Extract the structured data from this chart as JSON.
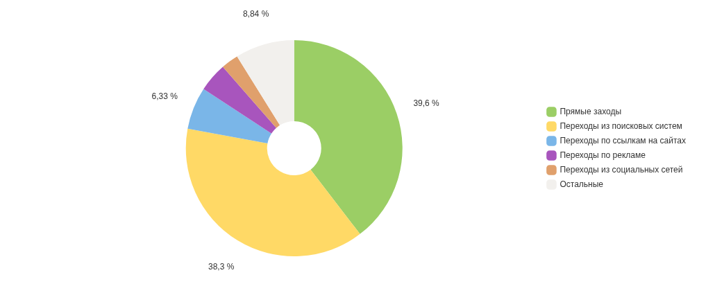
{
  "chart_data": {
    "type": "donut",
    "categories": [
      "Прямые заходы",
      "Переходы из поисковых систем",
      "Переходы по ссылкам на сайтах",
      "Переходы по рекламе",
      "Переходы из социальных сетей",
      "Остальные"
    ],
    "values": [
      39.6,
      38.3,
      6.33,
      4.33,
      2.6,
      8.84
    ],
    "colors": [
      "#9bce65",
      "#ffd966",
      "#7ab6e8",
      "#a855bd",
      "#e0a06c",
      "#f2f0ed"
    ],
    "value_labels": [
      "39,6 %",
      "38,3 %",
      "6,33 %",
      null,
      null,
      "8,84 %"
    ],
    "legend": "right"
  }
}
